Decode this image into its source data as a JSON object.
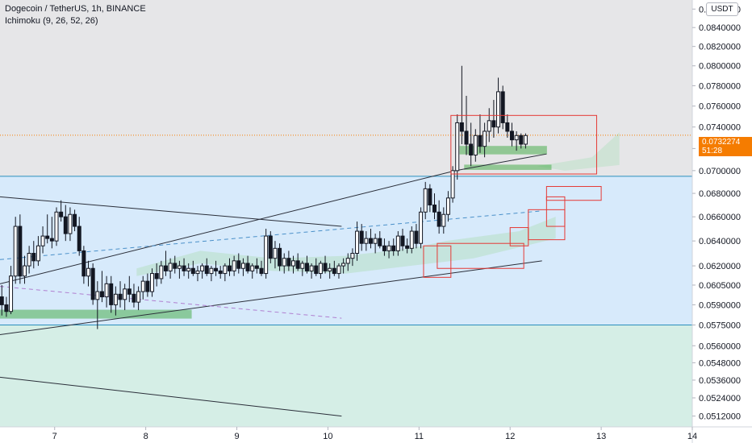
{
  "header": {
    "symbol_line": "Dogecoin / TetherUS, 1h, BINANCE",
    "indicator_line": "Ichimoku (9, 26, 52, 26)",
    "currency": "USDT"
  },
  "last_price": {
    "value": "0.0732274",
    "countdown": "51:28",
    "color": "#f57c00"
  },
  "colors": {
    "upper_zone": "#e6e6e8",
    "middle_zone": "#d7eafb",
    "lower_zone": "#d5eee6",
    "candle": "#131722",
    "box_red": "#e53935",
    "box_green": "#4caf50",
    "cloud_green": "#b7dfc4",
    "cloud_purple": "#d7cbe8"
  },
  "chart_data": {
    "type": "candlestick",
    "title": "Dogecoin / TetherUS, 1h, BINANCE",
    "indicator": "Ichimoku (9, 26, 52, 26)",
    "x_ticks": [
      "7",
      "8",
      "9",
      "10",
      "11",
      "12",
      "13",
      "14"
    ],
    "x_tick_values": [
      7,
      8,
      9,
      10,
      11,
      12,
      13,
      14
    ],
    "x_range": [
      6.4,
      14.0
    ],
    "y_ticks": [
      "0.0860000",
      "0.0840000",
      "0.0820000",
      "0.0800000",
      "0.0780000",
      "0.0760000",
      "0.0740000",
      "0.0720000",
      "0.0700000",
      "0.0680000",
      "0.0660000",
      "0.0640000",
      "0.0620000",
      "0.0605000",
      "0.0590000",
      "0.0575000",
      "0.0560000",
      "0.0548000",
      "0.0536000",
      "0.0524000",
      "0.0512000"
    ],
    "y_scale": "log",
    "y_range": [
      0.0505,
      0.087
    ],
    "last_price": 0.0732274,
    "zones": [
      {
        "name": "upper",
        "from": 0.0695,
        "to": 0.087
      },
      {
        "name": "middle",
        "from": 0.0575,
        "to": 0.0695
      },
      {
        "name": "lower",
        "from": 0.0505,
        "to": 0.0575
      }
    ],
    "trend_lines": [
      {
        "x1": 6.4,
        "y1": 0.0606,
        "x2": 11.4,
        "y2": 0.07
      },
      {
        "x1": 11.4,
        "y1": 0.07,
        "x2": 12.4,
        "y2": 0.0715
      },
      {
        "x1": 6.4,
        "y1": 0.0677,
        "x2": 10.15,
        "y2": 0.0652
      },
      {
        "x1": 6.4,
        "y1": 0.0568,
        "x2": 12.35,
        "y2": 0.0624
      },
      {
        "x1": 6.4,
        "y1": 0.0538,
        "x2": 10.15,
        "y2": 0.0512
      }
    ],
    "dashed_lines": [
      {
        "x1": 6.4,
        "y1": 0.0625,
        "x2": 12.35,
        "y2": 0.0665
      },
      {
        "x1": 6.4,
        "y1": 0.0604,
        "x2": 10.15,
        "y2": 0.058
      }
    ],
    "horizontal_lines": [
      0.0695,
      0.0575
    ],
    "red_boxes": [
      {
        "x1": 11.35,
        "x2": 12.95,
        "y1": 0.0697,
        "y2": 0.0751
      },
      {
        "x1": 12.4,
        "x2": 13.0,
        "y1": 0.0674,
        "y2": 0.0686
      },
      {
        "x1": 12.4,
        "x2": 12.6,
        "y1": 0.0652,
        "y2": 0.0677
      },
      {
        "x1": 12.2,
        "x2": 12.6,
        "y1": 0.0641,
        "y2": 0.0666
      },
      {
        "x1": 12.0,
        "x2": 12.2,
        "y1": 0.0636,
        "y2": 0.0651
      },
      {
        "x1": 11.2,
        "x2": 12.15,
        "y1": 0.0618,
        "y2": 0.0638
      },
      {
        "x1": 11.05,
        "x2": 11.35,
        "y1": 0.0611,
        "y2": 0.0636
      }
    ],
    "green_boxes": [
      {
        "x1": 6.4,
        "x2": 8.5,
        "y1": 0.058,
        "y2": 0.0586
      },
      {
        "x1": 11.45,
        "x2": 12.4,
        "y1": 0.0715,
        "y2": 0.0722
      },
      {
        "x1": 11.5,
        "x2": 12.45,
        "y1": 0.0701,
        "y2": 0.0705
      }
    ],
    "candles": [
      {
        "x": 6.42,
        "o": 0.0596,
        "h": 0.0605,
        "l": 0.0582,
        "c": 0.059
      },
      {
        "x": 6.47,
        "o": 0.059,
        "h": 0.0596,
        "l": 0.0581,
        "c": 0.0585
      },
      {
        "x": 6.52,
        "o": 0.0585,
        "h": 0.062,
        "l": 0.0583,
        "c": 0.0612
      },
      {
        "x": 6.57,
        "o": 0.0612,
        "h": 0.066,
        "l": 0.0606,
        "c": 0.0652
      },
      {
        "x": 6.62,
        "o": 0.0652,
        "h": 0.0662,
        "l": 0.0606,
        "c": 0.0612
      },
      {
        "x": 6.67,
        "o": 0.0612,
        "h": 0.0628,
        "l": 0.0606,
        "c": 0.062
      },
      {
        "x": 6.72,
        "o": 0.062,
        "h": 0.0636,
        "l": 0.0614,
        "c": 0.063
      },
      {
        "x": 6.77,
        "o": 0.063,
        "h": 0.064,
        "l": 0.0618,
        "c": 0.0624
      },
      {
        "x": 6.82,
        "o": 0.0624,
        "h": 0.0644,
        "l": 0.062,
        "c": 0.0636
      },
      {
        "x": 6.87,
        "o": 0.0636,
        "h": 0.0652,
        "l": 0.063,
        "c": 0.0644
      },
      {
        "x": 6.92,
        "o": 0.0644,
        "h": 0.0662,
        "l": 0.0638,
        "c": 0.0642
      },
      {
        "x": 6.97,
        "o": 0.0642,
        "h": 0.066,
        "l": 0.0634,
        "c": 0.064
      },
      {
        "x": 7.02,
        "o": 0.064,
        "h": 0.0668,
        "l": 0.0636,
        "c": 0.0664
      },
      {
        "x": 7.07,
        "o": 0.0664,
        "h": 0.0674,
        "l": 0.0656,
        "c": 0.066
      },
      {
        "x": 7.12,
        "o": 0.066,
        "h": 0.067,
        "l": 0.064,
        "c": 0.0646
      },
      {
        "x": 7.17,
        "o": 0.0646,
        "h": 0.0668,
        "l": 0.064,
        "c": 0.0662
      },
      {
        "x": 7.22,
        "o": 0.0662,
        "h": 0.0666,
        "l": 0.0648,
        "c": 0.0652
      },
      {
        "x": 7.27,
        "o": 0.0652,
        "h": 0.066,
        "l": 0.0628,
        "c": 0.0632
      },
      {
        "x": 7.32,
        "o": 0.0632,
        "h": 0.0636,
        "l": 0.0606,
        "c": 0.0612
      },
      {
        "x": 7.37,
        "o": 0.0612,
        "h": 0.0624,
        "l": 0.0604,
        "c": 0.0618
      },
      {
        "x": 7.42,
        "o": 0.0618,
        "h": 0.0622,
        "l": 0.059,
        "c": 0.0594
      },
      {
        "x": 7.47,
        "o": 0.0594,
        "h": 0.0608,
        "l": 0.0572,
        "c": 0.06
      },
      {
        "x": 7.52,
        "o": 0.06,
        "h": 0.0616,
        "l": 0.0592,
        "c": 0.0596
      },
      {
        "x": 7.57,
        "o": 0.0596,
        "h": 0.0612,
        "l": 0.0588,
        "c": 0.0606
      },
      {
        "x": 7.62,
        "o": 0.0606,
        "h": 0.0612,
        "l": 0.0584,
        "c": 0.059
      },
      {
        "x": 7.67,
        "o": 0.059,
        "h": 0.0604,
        "l": 0.0582,
        "c": 0.0598
      },
      {
        "x": 7.72,
        "o": 0.0598,
        "h": 0.0608,
        "l": 0.0588,
        "c": 0.0594
      },
      {
        "x": 7.77,
        "o": 0.0594,
        "h": 0.0606,
        "l": 0.0586,
        "c": 0.0602
      },
      {
        "x": 7.82,
        "o": 0.0602,
        "h": 0.0612,
        "l": 0.0592,
        "c": 0.0598
      },
      {
        "x": 7.87,
        "o": 0.0598,
        "h": 0.0606,
        "l": 0.0588,
        "c": 0.0592
      },
      {
        "x": 7.92,
        "o": 0.0592,
        "h": 0.0604,
        "l": 0.0586,
        "c": 0.06
      },
      {
        "x": 7.97,
        "o": 0.06,
        "h": 0.0612,
        "l": 0.0594,
        "c": 0.0608
      },
      {
        "x": 8.02,
        "o": 0.0608,
        "h": 0.0614,
        "l": 0.0596,
        "c": 0.06
      },
      {
        "x": 8.07,
        "o": 0.06,
        "h": 0.0618,
        "l": 0.0596,
        "c": 0.0614
      },
      {
        "x": 8.12,
        "o": 0.0614,
        "h": 0.0622,
        "l": 0.0604,
        "c": 0.061
      },
      {
        "x": 8.17,
        "o": 0.061,
        "h": 0.0624,
        "l": 0.0606,
        "c": 0.062
      },
      {
        "x": 8.22,
        "o": 0.062,
        "h": 0.0632,
        "l": 0.0612,
        "c": 0.0616
      },
      {
        "x": 8.27,
        "o": 0.0616,
        "h": 0.0626,
        "l": 0.061,
        "c": 0.0622
      },
      {
        "x": 8.32,
        "o": 0.0622,
        "h": 0.0628,
        "l": 0.0614,
        "c": 0.0618
      },
      {
        "x": 8.37,
        "o": 0.0618,
        "h": 0.0624,
        "l": 0.061,
        "c": 0.062
      },
      {
        "x": 8.42,
        "o": 0.062,
        "h": 0.0626,
        "l": 0.0612,
        "c": 0.0616
      },
      {
        "x": 8.47,
        "o": 0.0616,
        "h": 0.0622,
        "l": 0.061,
        "c": 0.0618
      },
      {
        "x": 8.52,
        "o": 0.0618,
        "h": 0.0624,
        "l": 0.0612,
        "c": 0.0614
      },
      {
        "x": 8.57,
        "o": 0.0614,
        "h": 0.062,
        "l": 0.0608,
        "c": 0.0616
      },
      {
        "x": 8.62,
        "o": 0.0616,
        "h": 0.0622,
        "l": 0.061,
        "c": 0.062
      },
      {
        "x": 8.67,
        "o": 0.062,
        "h": 0.0626,
        "l": 0.0612,
        "c": 0.0614
      },
      {
        "x": 8.72,
        "o": 0.0614,
        "h": 0.062,
        "l": 0.0608,
        "c": 0.0618
      },
      {
        "x": 8.77,
        "o": 0.0618,
        "h": 0.0624,
        "l": 0.0612,
        "c": 0.0616
      },
      {
        "x": 8.82,
        "o": 0.0616,
        "h": 0.062,
        "l": 0.061,
        "c": 0.0614
      },
      {
        "x": 8.87,
        "o": 0.0614,
        "h": 0.0622,
        "l": 0.0608,
        "c": 0.062
      },
      {
        "x": 8.92,
        "o": 0.062,
        "h": 0.0626,
        "l": 0.0612,
        "c": 0.0616
      },
      {
        "x": 8.97,
        "o": 0.0616,
        "h": 0.0628,
        "l": 0.0612,
        "c": 0.0624
      },
      {
        "x": 9.02,
        "o": 0.0624,
        "h": 0.063,
        "l": 0.0614,
        "c": 0.0618
      },
      {
        "x": 9.07,
        "o": 0.0618,
        "h": 0.0626,
        "l": 0.0612,
        "c": 0.0622
      },
      {
        "x": 9.12,
        "o": 0.0622,
        "h": 0.0628,
        "l": 0.0614,
        "c": 0.0616
      },
      {
        "x": 9.17,
        "o": 0.0616,
        "h": 0.0622,
        "l": 0.061,
        "c": 0.062
      },
      {
        "x": 9.22,
        "o": 0.062,
        "h": 0.0626,
        "l": 0.0614,
        "c": 0.0618
      },
      {
        "x": 9.27,
        "o": 0.0618,
        "h": 0.0624,
        "l": 0.0612,
        "c": 0.0614
      },
      {
        "x": 9.32,
        "o": 0.0614,
        "h": 0.065,
        "l": 0.061,
        "c": 0.0644
      },
      {
        "x": 9.37,
        "o": 0.0644,
        "h": 0.0648,
        "l": 0.0622,
        "c": 0.0626
      },
      {
        "x": 9.42,
        "o": 0.0626,
        "h": 0.064,
        "l": 0.0618,
        "c": 0.0634
      },
      {
        "x": 9.47,
        "o": 0.0634,
        "h": 0.0638,
        "l": 0.0616,
        "c": 0.062
      },
      {
        "x": 9.52,
        "o": 0.062,
        "h": 0.063,
        "l": 0.0614,
        "c": 0.0626
      },
      {
        "x": 9.57,
        "o": 0.0626,
        "h": 0.0632,
        "l": 0.0616,
        "c": 0.062
      },
      {
        "x": 9.62,
        "o": 0.062,
        "h": 0.0628,
        "l": 0.0614,
        "c": 0.0624
      },
      {
        "x": 9.67,
        "o": 0.0624,
        "h": 0.063,
        "l": 0.0616,
        "c": 0.0618
      },
      {
        "x": 9.72,
        "o": 0.0618,
        "h": 0.0624,
        "l": 0.0612,
        "c": 0.0622
      },
      {
        "x": 9.77,
        "o": 0.0622,
        "h": 0.0628,
        "l": 0.0614,
        "c": 0.0616
      },
      {
        "x": 9.82,
        "o": 0.0616,
        "h": 0.0622,
        "l": 0.061,
        "c": 0.062
      },
      {
        "x": 9.87,
        "o": 0.062,
        "h": 0.0626,
        "l": 0.0612,
        "c": 0.0614
      },
      {
        "x": 9.92,
        "o": 0.0614,
        "h": 0.0624,
        "l": 0.061,
        "c": 0.0622
      },
      {
        "x": 9.97,
        "o": 0.0622,
        "h": 0.0628,
        "l": 0.0614,
        "c": 0.0616
      },
      {
        "x": 10.02,
        "o": 0.0616,
        "h": 0.0622,
        "l": 0.061,
        "c": 0.0618
      },
      {
        "x": 10.07,
        "o": 0.0618,
        "h": 0.0624,
        "l": 0.0612,
        "c": 0.0614
      },
      {
        "x": 10.12,
        "o": 0.0614,
        "h": 0.0622,
        "l": 0.061,
        "c": 0.062
      },
      {
        "x": 10.17,
        "o": 0.062,
        "h": 0.0626,
        "l": 0.0614,
        "c": 0.0622
      },
      {
        "x": 10.22,
        "o": 0.0622,
        "h": 0.063,
        "l": 0.0616,
        "c": 0.0626
      },
      {
        "x": 10.27,
        "o": 0.0626,
        "h": 0.0634,
        "l": 0.062,
        "c": 0.063
      },
      {
        "x": 10.32,
        "o": 0.063,
        "h": 0.0656,
        "l": 0.0624,
        "c": 0.0648
      },
      {
        "x": 10.37,
        "o": 0.0648,
        "h": 0.0654,
        "l": 0.0632,
        "c": 0.0638
      },
      {
        "x": 10.42,
        "o": 0.0638,
        "h": 0.0648,
        "l": 0.0632,
        "c": 0.0642
      },
      {
        "x": 10.47,
        "o": 0.0642,
        "h": 0.065,
        "l": 0.0634,
        "c": 0.0638
      },
      {
        "x": 10.52,
        "o": 0.0638,
        "h": 0.0646,
        "l": 0.063,
        "c": 0.0642
      },
      {
        "x": 10.57,
        "o": 0.0642,
        "h": 0.0648,
        "l": 0.0634,
        "c": 0.0636
      },
      {
        "x": 10.62,
        "o": 0.0636,
        "h": 0.0642,
        "l": 0.0628,
        "c": 0.0632
      },
      {
        "x": 10.67,
        "o": 0.0632,
        "h": 0.064,
        "l": 0.0626,
        "c": 0.0636
      },
      {
        "x": 10.72,
        "o": 0.0636,
        "h": 0.0642,
        "l": 0.0628,
        "c": 0.0632
      },
      {
        "x": 10.77,
        "o": 0.0632,
        "h": 0.0648,
        "l": 0.0628,
        "c": 0.0644
      },
      {
        "x": 10.82,
        "o": 0.0644,
        "h": 0.065,
        "l": 0.0632,
        "c": 0.0636
      },
      {
        "x": 10.87,
        "o": 0.0636,
        "h": 0.0642,
        "l": 0.063,
        "c": 0.0634
      },
      {
        "x": 10.92,
        "o": 0.0634,
        "h": 0.0652,
        "l": 0.063,
        "c": 0.0648
      },
      {
        "x": 10.97,
        "o": 0.0648,
        "h": 0.0654,
        "l": 0.0634,
        "c": 0.0638
      },
      {
        "x": 11.02,
        "o": 0.0638,
        "h": 0.0668,
        "l": 0.0634,
        "c": 0.0664
      },
      {
        "x": 11.07,
        "o": 0.0664,
        "h": 0.069,
        "l": 0.0658,
        "c": 0.0684
      },
      {
        "x": 11.12,
        "o": 0.0684,
        "h": 0.0688,
        "l": 0.0664,
        "c": 0.067
      },
      {
        "x": 11.17,
        "o": 0.067,
        "h": 0.068,
        "l": 0.0658,
        "c": 0.0664
      },
      {
        "x": 11.22,
        "o": 0.0664,
        "h": 0.0674,
        "l": 0.0646,
        "c": 0.0652
      },
      {
        "x": 11.27,
        "o": 0.0652,
        "h": 0.0668,
        "l": 0.0646,
        "c": 0.0662
      },
      {
        "x": 11.32,
        "o": 0.0662,
        "h": 0.0682,
        "l": 0.0656,
        "c": 0.0676
      },
      {
        "x": 11.37,
        "o": 0.0676,
        "h": 0.0704,
        "l": 0.0672,
        "c": 0.07
      },
      {
        "x": 11.42,
        "o": 0.07,
        "h": 0.0752,
        "l": 0.0692,
        "c": 0.0744
      },
      {
        "x": 11.47,
        "o": 0.0744,
        "h": 0.08,
        "l": 0.0724,
        "c": 0.0736
      },
      {
        "x": 11.52,
        "o": 0.0736,
        "h": 0.077,
        "l": 0.0714,
        "c": 0.0724
      },
      {
        "x": 11.57,
        "o": 0.0724,
        "h": 0.0744,
        "l": 0.0704,
        "c": 0.0714
      },
      {
        "x": 11.62,
        "o": 0.0714,
        "h": 0.0738,
        "l": 0.0708,
        "c": 0.0732
      },
      {
        "x": 11.67,
        "o": 0.0732,
        "h": 0.0752,
        "l": 0.0716,
        "c": 0.0722
      },
      {
        "x": 11.72,
        "o": 0.0722,
        "h": 0.0744,
        "l": 0.0712,
        "c": 0.0736
      },
      {
        "x": 11.77,
        "o": 0.0736,
        "h": 0.0758,
        "l": 0.0726,
        "c": 0.0746
      },
      {
        "x": 11.82,
        "o": 0.0746,
        "h": 0.0766,
        "l": 0.073,
        "c": 0.074
      },
      {
        "x": 11.87,
        "o": 0.074,
        "h": 0.0788,
        "l": 0.0734,
        "c": 0.0774
      },
      {
        "x": 11.92,
        "o": 0.0774,
        "h": 0.078,
        "l": 0.0738,
        "c": 0.0744
      },
      {
        "x": 11.97,
        "o": 0.0744,
        "h": 0.0752,
        "l": 0.073,
        "c": 0.0736
      },
      {
        "x": 12.02,
        "o": 0.0736,
        "h": 0.0744,
        "l": 0.0722,
        "c": 0.0728
      },
      {
        "x": 12.07,
        "o": 0.0728,
        "h": 0.0736,
        "l": 0.0718,
        "c": 0.0732
      },
      {
        "x": 12.12,
        "o": 0.0732,
        "h": 0.0734,
        "l": 0.072,
        "c": 0.0724
      },
      {
        "x": 12.17,
        "o": 0.0724,
        "h": 0.0734,
        "l": 0.072,
        "c": 0.0732
      }
    ]
  }
}
